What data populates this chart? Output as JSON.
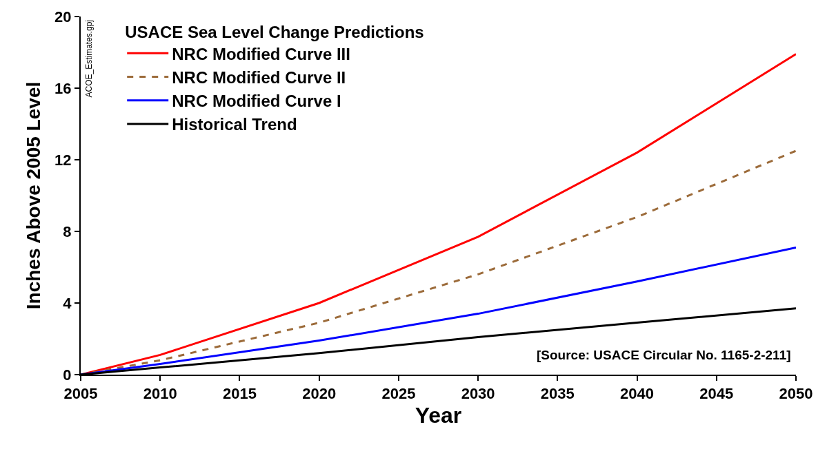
{
  "chart_data": {
    "type": "line",
    "xlabel": "Year",
    "ylabel": "Inches Above 2005 Level",
    "legend_title": "USACE Sea Level Change Predictions",
    "x": [
      2005,
      2010,
      2020,
      2030,
      2040,
      2050
    ],
    "series": [
      {
        "name": "NRC Modified Curve III",
        "color": "#ff0000",
        "values": [
          0,
          1.1,
          4.0,
          7.7,
          12.4,
          17.9
        ]
      },
      {
        "name": "NRC Modified Curve II",
        "color": "#9c6b3a",
        "line_style": "dashed",
        "values": [
          0,
          0.8,
          2.9,
          5.6,
          8.8,
          12.5
        ]
      },
      {
        "name": "NRC Modified Curve I",
        "color": "#0000ff",
        "values": [
          0,
          0.6,
          1.9,
          3.4,
          5.2,
          7.1
        ]
      },
      {
        "name": "Historical Trend",
        "color": "#000000",
        "values": [
          0,
          0.4,
          1.2,
          2.1,
          2.9,
          3.7
        ]
      }
    ],
    "xlim": [
      2005,
      2050
    ],
    "xticks": [
      2005,
      2010,
      2015,
      2020,
      2025,
      2030,
      2035,
      2040,
      2045,
      2050
    ],
    "ylim": [
      0,
      20
    ],
    "yticks": [
      0,
      4,
      8,
      12,
      16,
      20
    ],
    "legend": "top left",
    "marker": "none",
    "line_style": "solid",
    "annotations": [
      "[Source: USACE Circular No. 1165-2-211]",
      "ACOE_Estimates.gpj"
    ]
  }
}
